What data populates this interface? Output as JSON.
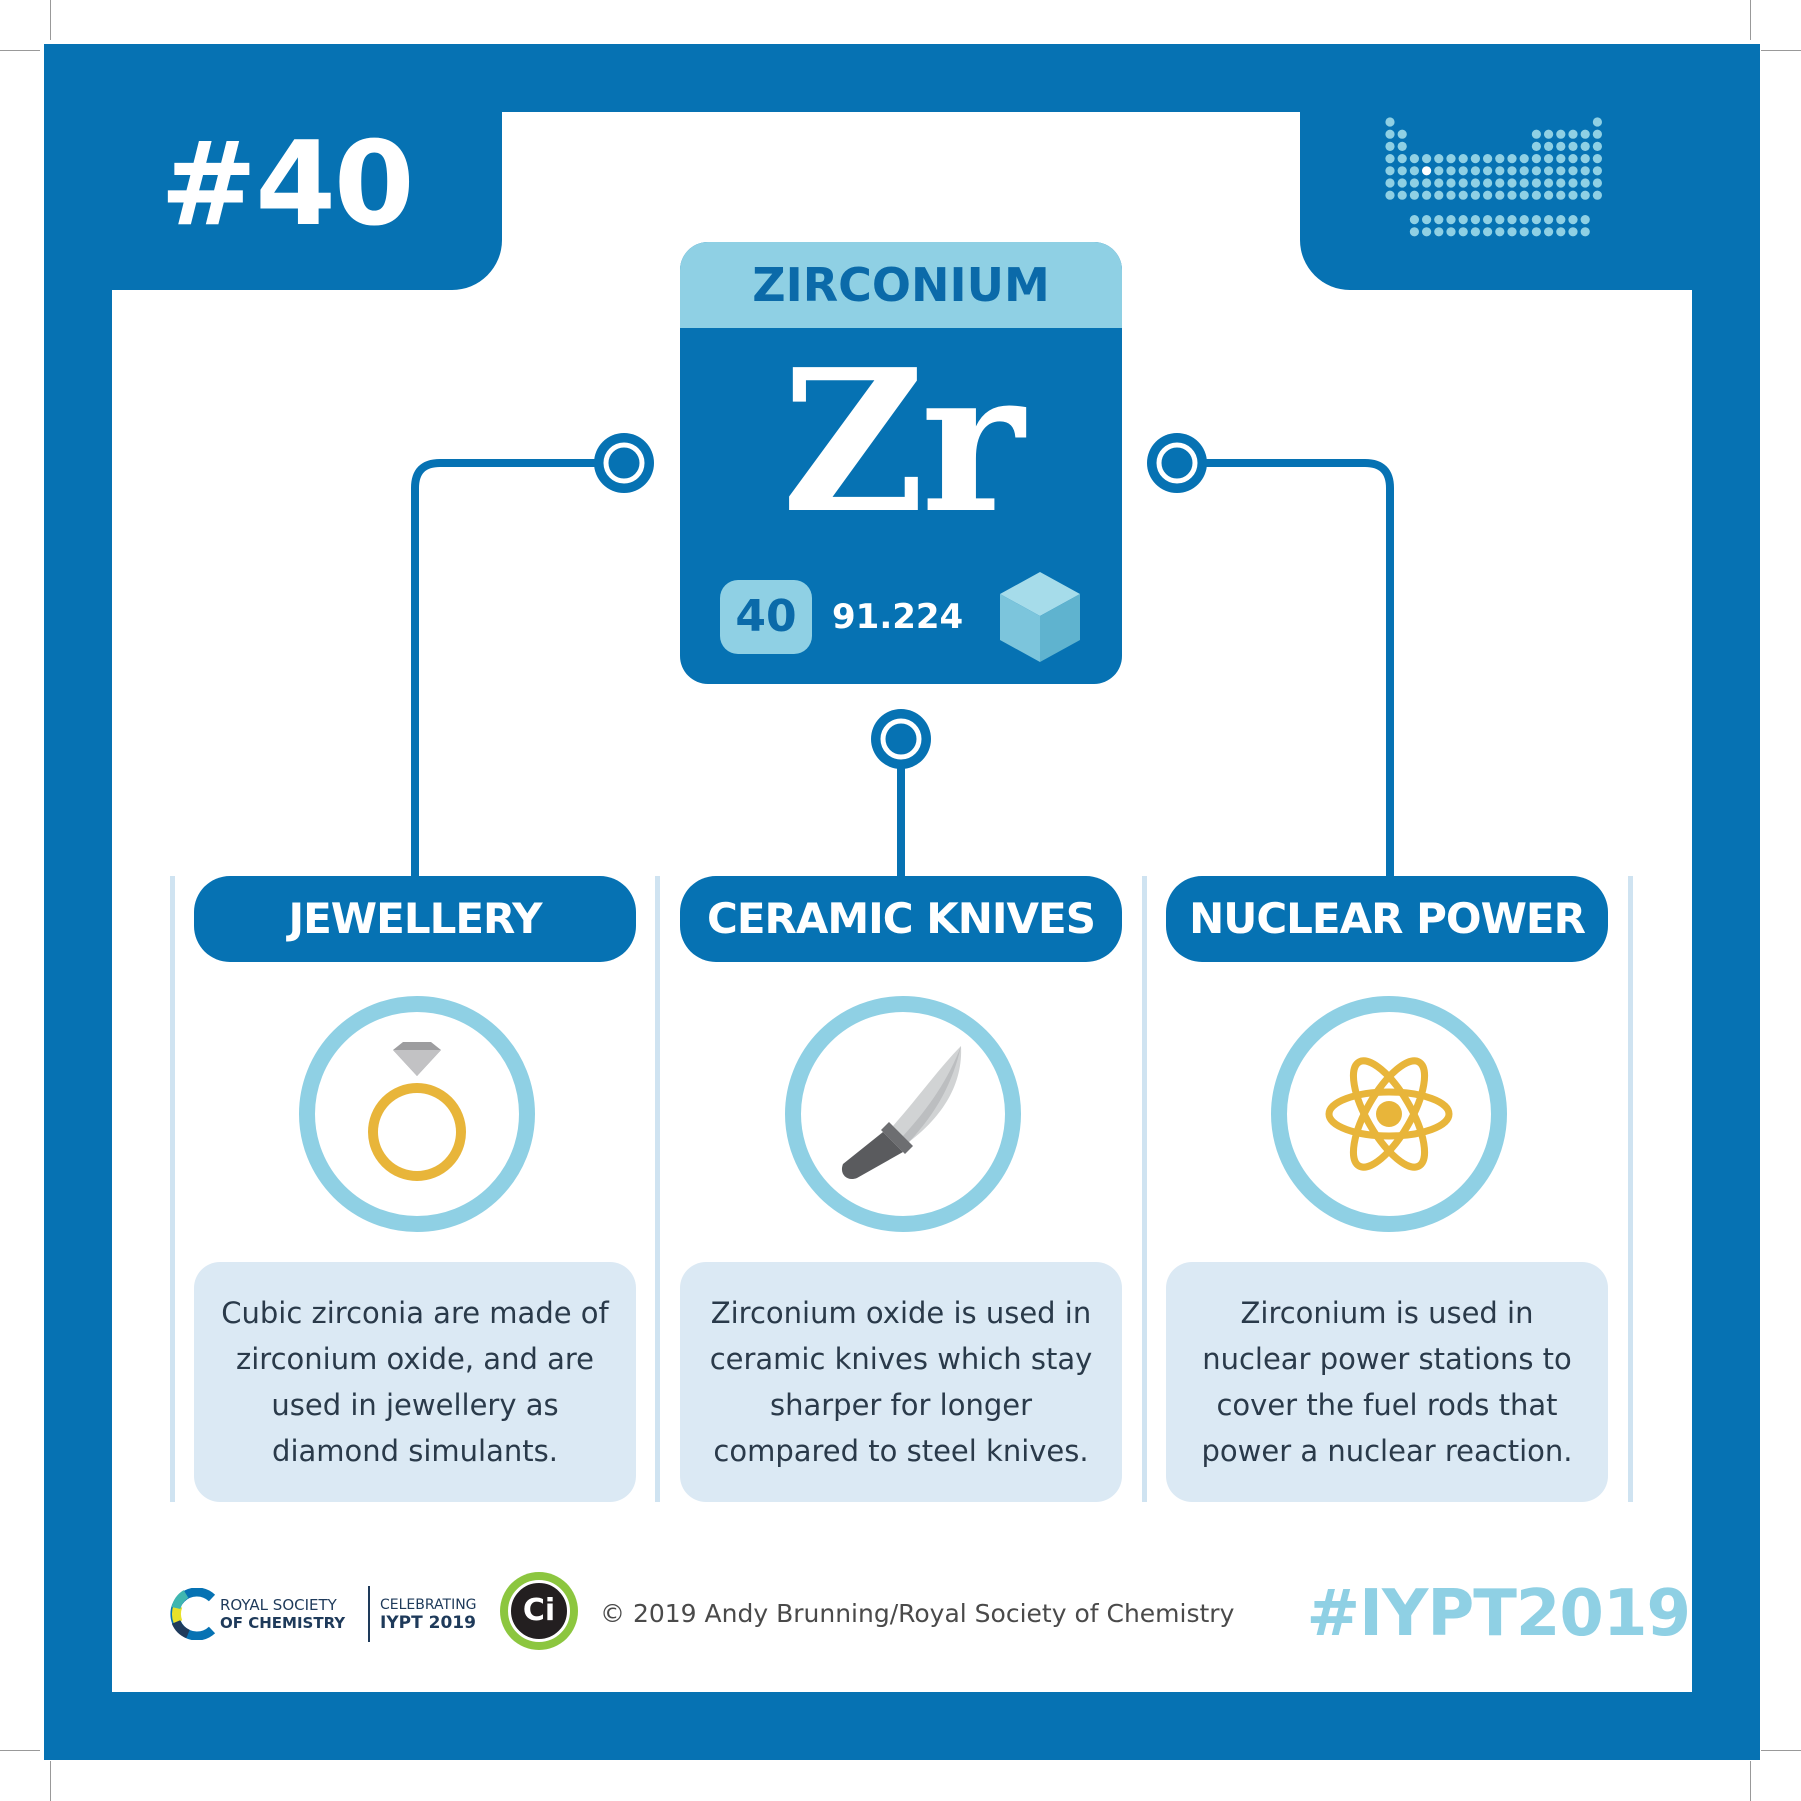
{
  "colors": {
    "primary": "#0672b3",
    "light_blue": "#8fd0e4",
    "box_bg": "#dbe9f4",
    "gold": "#e8b53a",
    "grey": "#6d6e71"
  },
  "header": {
    "number": "#40"
  },
  "element": {
    "name": "ZIRCONIUM",
    "symbol": "Zr",
    "atomic_number": "40",
    "atomic_mass": "91.224",
    "crystal_icon": "cube-icon"
  },
  "uses": [
    {
      "title": "JEWELLERY",
      "icon": "ring-icon",
      "description": "Cubic zirconia are made of zirconium oxide, and are used in jewellery as diamond simulants."
    },
    {
      "title": "CERAMIC KNIVES",
      "icon": "knife-icon",
      "description": "Zirconium oxide is used in ceramic knives which stay sharper for longer compared to steel knives."
    },
    {
      "title": "NUCLEAR POWER",
      "icon": "atom-icon",
      "description": "Zirconium is used in nuclear power stations to cover the fuel rods that power a nuclear reaction."
    }
  ],
  "footer": {
    "rsc_line1": "ROYAL SOCIETY",
    "rsc_line2": "OF CHEMISTRY",
    "celebrating_line1": "CELEBRATING",
    "celebrating_line2": "IYPT 2019",
    "ci_logo": "Ci",
    "copyright": "© 2019 Andy Brunning/Royal Society of Chemistry",
    "hashtag": "#IYPT2019"
  }
}
